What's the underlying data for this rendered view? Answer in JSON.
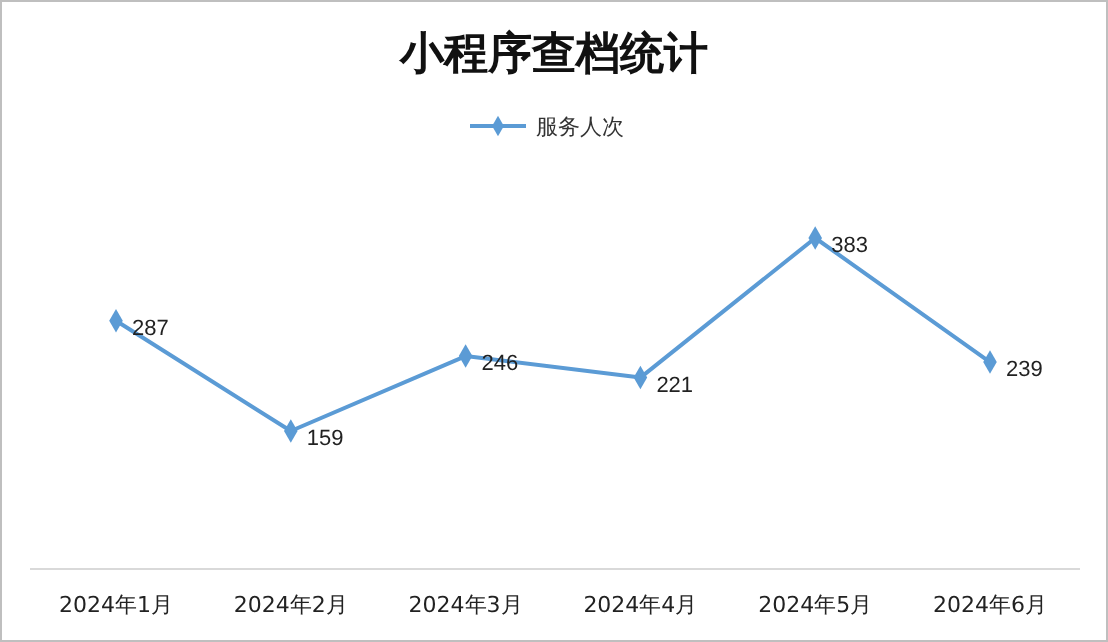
{
  "chart_data": {
    "type": "line",
    "title": "小程序查档统计",
    "categories": [
      "2024年1月",
      "2024年2月",
      "2024年3月",
      "2024年4月",
      "2024年5月",
      "2024年6月"
    ],
    "series": [
      {
        "name": "服务人次",
        "color": "#5b9bd5",
        "values": [
          287,
          159,
          246,
          221,
          383,
          239
        ]
      }
    ],
    "data_labels": true,
    "legend": "top",
    "marker": "diamond",
    "line_style": "solid"
  }
}
